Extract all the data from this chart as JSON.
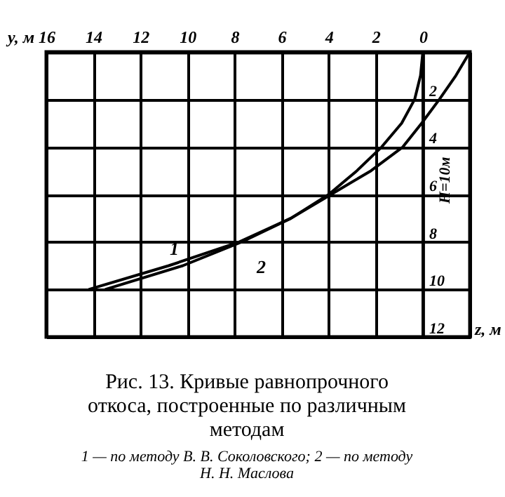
{
  "chart_data": {
    "type": "line",
    "title": "Рис. 13. Кривые равнопрочного откоса, построенные по различным методам",
    "subtitle": "1 — по методу В. В. Соколовского; 2 — по методу Н. Н. Маслова",
    "xlabel": "y, м",
    "ylabel": "z, м",
    "annotations": [
      "H=10м"
    ],
    "series": [
      {
        "name": "1",
        "color": "#000000",
        "x": [
          0,
          0.1,
          0.35,
          0.9,
          1.75,
          2.8,
          4,
          5.6,
          7.8,
          10.8,
          14.2
        ],
        "values": [
          0,
          1,
          2,
          3,
          4,
          5,
          6,
          7,
          8,
          9,
          10
        ]
      },
      {
        "name": "2",
        "color": "#000000",
        "x": [
          -2,
          -1.4,
          -0.7,
          0.05,
          0.85,
          2.2,
          3.9,
          5.6,
          7.7,
          10.2,
          13.5
        ],
        "values": [
          0,
          1,
          2,
          3,
          4,
          5,
          6,
          7,
          8,
          9,
          10
        ]
      }
    ],
    "xlim": [
      16,
      -2
    ],
    "xticks": [
      16,
      14,
      12,
      10,
      8,
      6,
      4,
      2,
      0,
      {
        "value": -2,
        "label": null
      }
    ],
    "ylim": [
      12,
      0
    ],
    "yticks": [
      2,
      4,
      6,
      8,
      10,
      12
    ],
    "grid": true,
    "marker": "none",
    "line_style": "solid"
  }
}
